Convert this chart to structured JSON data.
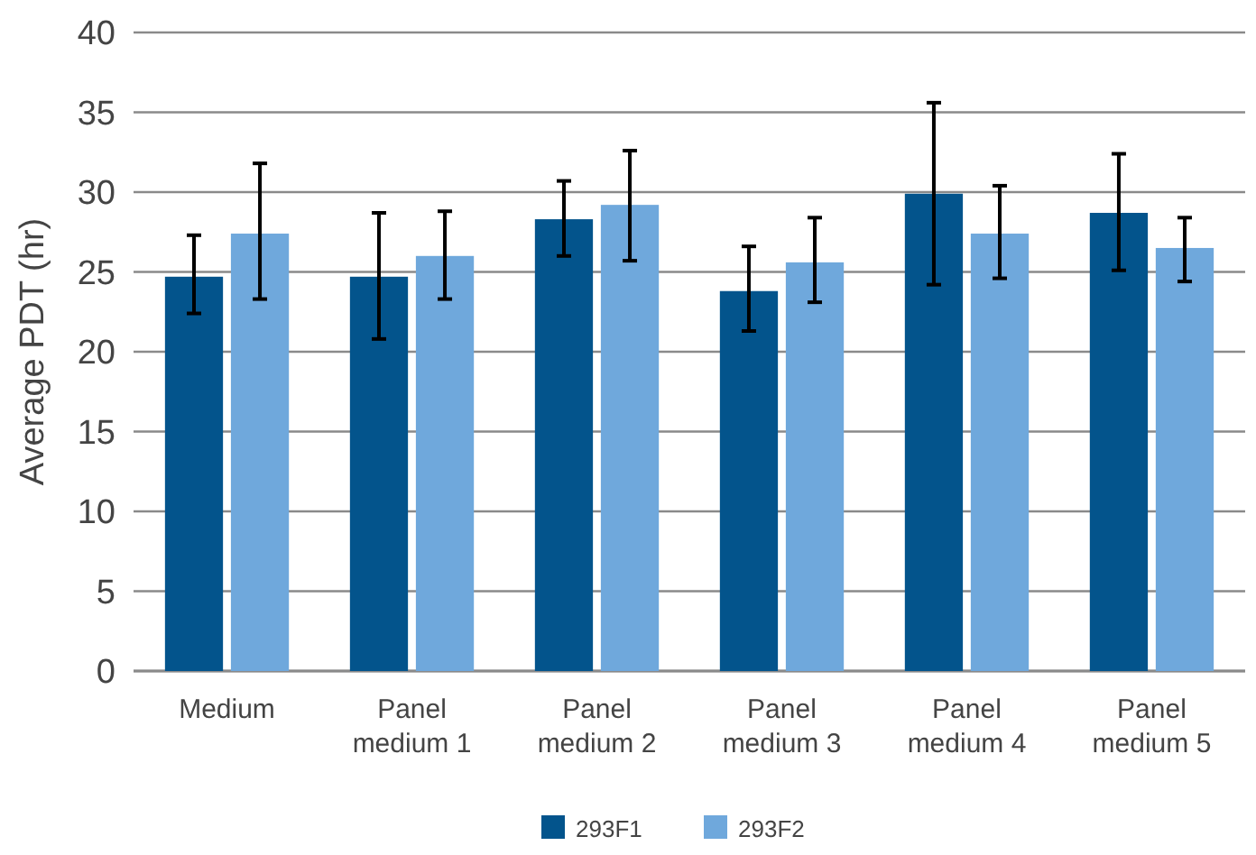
{
  "chart_data": {
    "type": "bar",
    "ylabel": "Average PDT (hr)",
    "categories": [
      "Medium",
      "Panel medium 1",
      "Panel medium 2",
      "Panel medium 3",
      "Panel medium 4",
      "Panel medium 5"
    ],
    "series": [
      {
        "name": "293F1",
        "color": "#03548c",
        "values": [
          24.7,
          24.7,
          28.3,
          23.8,
          29.9,
          28.7
        ],
        "errors": [
          [
            22.4,
            27.3
          ],
          [
            20.8,
            28.7
          ],
          [
            26.0,
            30.7
          ],
          [
            21.3,
            26.6
          ],
          [
            24.2,
            35.6
          ],
          [
            25.1,
            32.4
          ]
        ]
      },
      {
        "name": "293F2",
        "color": "#6fa8dc",
        "values": [
          27.4,
          26.0,
          29.2,
          25.6,
          27.4,
          26.5
        ],
        "errors": [
          [
            23.3,
            31.8
          ],
          [
            23.3,
            28.8
          ],
          [
            25.7,
            32.6
          ],
          [
            23.1,
            28.4
          ],
          [
            24.6,
            30.4
          ],
          [
            24.4,
            28.4
          ]
        ]
      }
    ],
    "ylim": [
      0,
      40
    ],
    "yticks": [
      0,
      5,
      10,
      15,
      20,
      25,
      30,
      35,
      40
    ],
    "grid": "y",
    "legend": "bottom"
  }
}
